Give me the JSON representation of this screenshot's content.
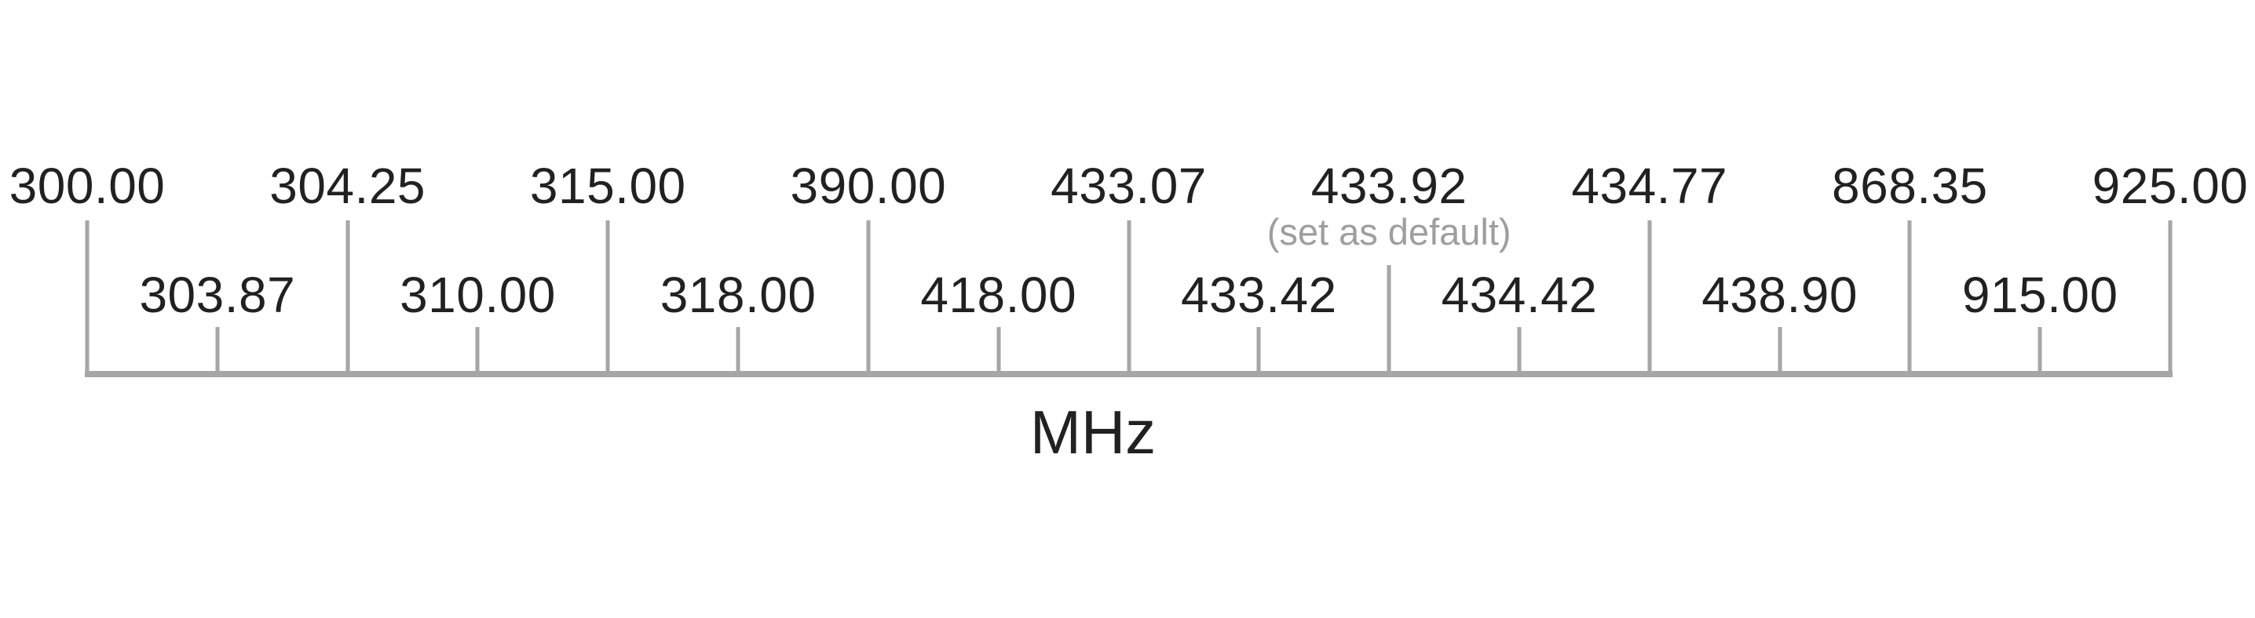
{
  "chart_data": {
    "type": "scatter",
    "subtype": "number-line-frequency-axis",
    "xlabel": "MHz",
    "x": [
      300.0,
      303.87,
      304.25,
      310.0,
      315.0,
      318.0,
      390.0,
      418.0,
      433.07,
      433.42,
      433.92,
      434.42,
      434.77,
      438.9,
      868.35,
      915.0,
      925.0
    ],
    "tick_labels": [
      "300.00",
      "303.87",
      "304.25",
      "310.00",
      "315.00",
      "318.00",
      "390.00",
      "418.00",
      "433.07",
      "433.42",
      "433.92",
      "434.42",
      "434.77",
      "438.90",
      "868.35",
      "915.00",
      "925.00"
    ],
    "annotations": [
      {
        "x": 433.92,
        "text": "(set as default)"
      }
    ],
    "layout": {
      "tick_spacing": "equidistant",
      "label_rows": "alternating top/bottom",
      "grid": false,
      "legend": "none",
      "axis_color": "#a6a6a6",
      "label_color": "#212121",
      "note_color": "#9e9e9e"
    }
  },
  "axis": {
    "unit_label": "MHz",
    "frequencies": [
      {
        "label": "300.00",
        "row": "top"
      },
      {
        "label": "303.87",
        "row": "bottom"
      },
      {
        "label": "304.25",
        "row": "top"
      },
      {
        "label": "310.00",
        "row": "bottom"
      },
      {
        "label": "315.00",
        "row": "top"
      },
      {
        "label": "318.00",
        "row": "bottom"
      },
      {
        "label": "390.00",
        "row": "top"
      },
      {
        "label": "418.00",
        "row": "bottom"
      },
      {
        "label": "433.07",
        "row": "top"
      },
      {
        "label": "433.42",
        "row": "bottom"
      },
      {
        "label": "433.92",
        "row": "top",
        "note": "(set as default)",
        "is_default": true
      },
      {
        "label": "434.42",
        "row": "bottom"
      },
      {
        "label": "434.77",
        "row": "top"
      },
      {
        "label": "438.90",
        "row": "bottom"
      },
      {
        "label": "868.35",
        "row": "top"
      },
      {
        "label": "915.00",
        "row": "bottom"
      },
      {
        "label": "925.00",
        "row": "top"
      }
    ]
  },
  "colors": {
    "background": "#ffffff",
    "axis": "#a6a6a6",
    "label_text": "#212121",
    "note_text": "#9e9e9e"
  }
}
